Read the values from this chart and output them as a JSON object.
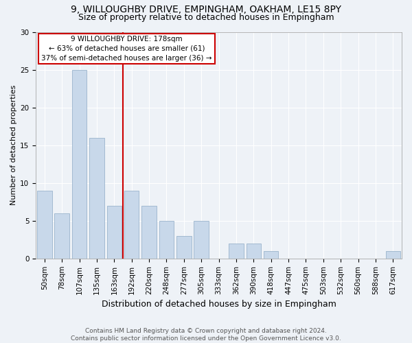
{
  "title1": "9, WILLOUGHBY DRIVE, EMPINGHAM, OAKHAM, LE15 8PY",
  "title2": "Size of property relative to detached houses in Empingham",
  "xlabel": "Distribution of detached houses by size in Empingham",
  "ylabel": "Number of detached properties",
  "categories": [
    "50sqm",
    "78sqm",
    "107sqm",
    "135sqm",
    "163sqm",
    "192sqm",
    "220sqm",
    "248sqm",
    "277sqm",
    "305sqm",
    "333sqm",
    "362sqm",
    "390sqm",
    "418sqm",
    "447sqm",
    "475sqm",
    "503sqm",
    "532sqm",
    "560sqm",
    "588sqm",
    "617sqm"
  ],
  "values": [
    9,
    6,
    25,
    16,
    7,
    9,
    7,
    5,
    3,
    5,
    0,
    2,
    2,
    1,
    0,
    0,
    0,
    0,
    0,
    0,
    1
  ],
  "bar_color": "#c8d8ea",
  "bar_edge_color": "#9ab4cc",
  "vline_x": 4.5,
  "vline_color": "#cc0000",
  "annotation_line1": "9 WILLOUGHBY DRIVE: 178sqm",
  "annotation_line2": "← 63% of detached houses are smaller (61)",
  "annotation_line3": "37% of semi-detached houses are larger (36) →",
  "annotation_box_facecolor": "#ffffff",
  "annotation_box_edgecolor": "#cc0000",
  "ylim": [
    0,
    30
  ],
  "yticks": [
    0,
    5,
    10,
    15,
    20,
    25,
    30
  ],
  "background_color": "#eef2f7",
  "grid_color": "#ffffff",
  "title1_fontsize": 10,
  "title2_fontsize": 9,
  "xlabel_fontsize": 9,
  "ylabel_fontsize": 8,
  "tick_fontsize": 7.5,
  "footer_text": "Contains HM Land Registry data © Crown copyright and database right 2024.\nContains public sector information licensed under the Open Government Licence v3.0."
}
